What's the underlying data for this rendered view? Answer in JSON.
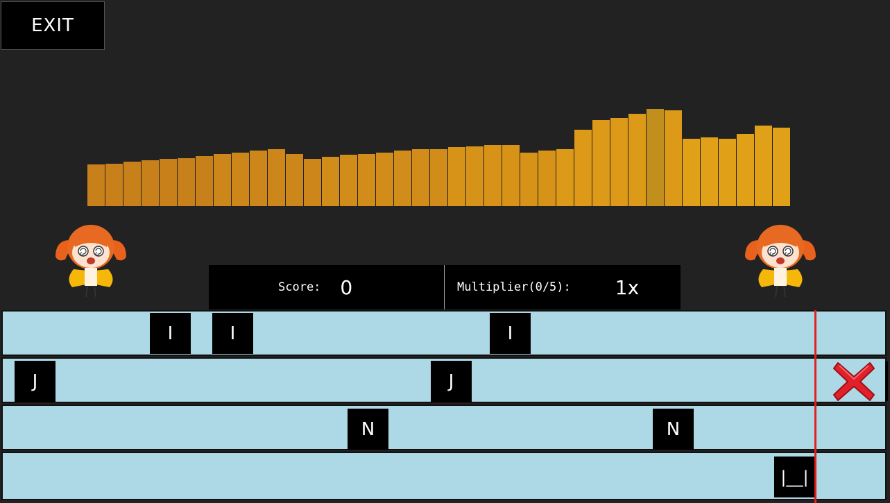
{
  "exit_button": {
    "label": "EXIT"
  },
  "scoreboard": {
    "score_label": "Score:",
    "score_value": "0",
    "multiplier_label": "Multiplier(0/5):",
    "multiplier_value": "1x"
  },
  "visualizer": {
    "levels": [
      0.38,
      0.39,
      0.41,
      0.42,
      0.43,
      0.44,
      0.46,
      0.48,
      0.49,
      0.51,
      0.52,
      0.48,
      0.43,
      0.45,
      0.47,
      0.48,
      0.49,
      0.51,
      0.52,
      0.52,
      0.54,
      0.55,
      0.56,
      0.56,
      0.49,
      0.51,
      0.52,
      0.7,
      0.79,
      0.81,
      0.85,
      0.89,
      0.88,
      0.62,
      0.63,
      0.62,
      0.66,
      0.74,
      0.72
    ],
    "bar_colors": [
      "#c8801a",
      "#cd861a",
      "#d28c19",
      "#d79318",
      "#dc9a18",
      "#e0a017"
    ],
    "highlight_color": "#c28f1c"
  },
  "tracks": [
    {
      "notes": [
        "I",
        "I",
        "I"
      ]
    },
    {
      "notes": [
        "J",
        "J"
      ]
    },
    {
      "notes": [
        "N",
        "N"
      ]
    },
    {
      "notes": [
        "|__|"
      ]
    }
  ],
  "icons": {
    "character": "chibi-girl-icon",
    "miss": "red-x-icon"
  },
  "colors": {
    "background": "#222222",
    "track": "#add8e6",
    "hit_line": "#e0201c"
  }
}
